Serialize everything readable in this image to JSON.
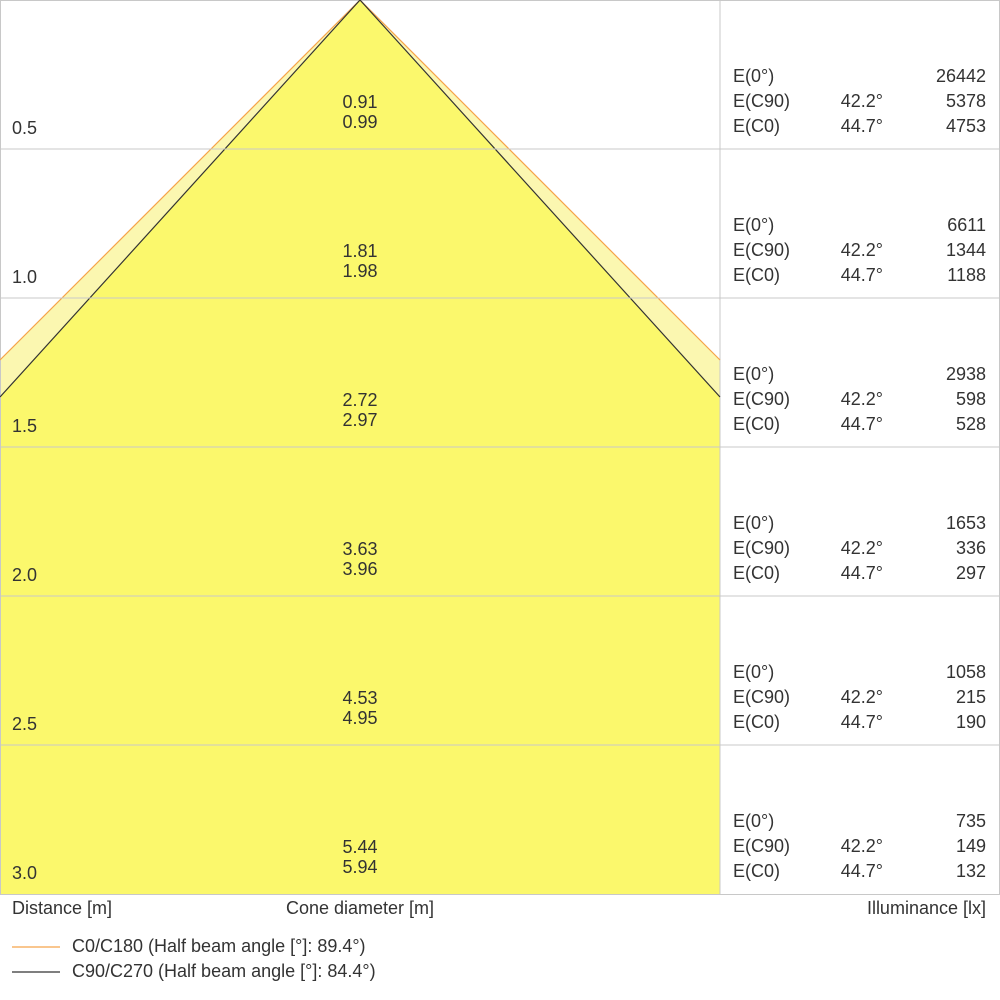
{
  "rows": [
    {
      "distance": "0.5",
      "diameters": [
        "0.91",
        "0.99"
      ],
      "lines": [
        {
          "label": "E(0°)",
          "value": "26442"
        },
        {
          "label": "E(C90)",
          "angle": "42.2°",
          "value": "5378"
        },
        {
          "label": "E(C0)",
          "angle": "44.7°",
          "value": "4753"
        }
      ]
    },
    {
      "distance": "1.0",
      "diameters": [
        "1.81",
        "1.98"
      ],
      "lines": [
        {
          "label": "E(0°)",
          "value": "6611"
        },
        {
          "label": "E(C90)",
          "angle": "42.2°",
          "value": "1344"
        },
        {
          "label": "E(C0)",
          "angle": "44.7°",
          "value": "1188"
        }
      ]
    },
    {
      "distance": "1.5",
      "diameters": [
        "2.72",
        "2.97"
      ],
      "lines": [
        {
          "label": "E(0°)",
          "value": "2938"
        },
        {
          "label": "E(C90)",
          "angle": "42.2°",
          "value": "598"
        },
        {
          "label": "E(C0)",
          "angle": "44.7°",
          "value": "528"
        }
      ]
    },
    {
      "distance": "2.0",
      "diameters": [
        "3.63",
        "3.96"
      ],
      "lines": [
        {
          "label": "E(0°)",
          "value": "1653"
        },
        {
          "label": "E(C90)",
          "angle": "42.2°",
          "value": "336"
        },
        {
          "label": "E(C0)",
          "angle": "44.7°",
          "value": "297"
        }
      ]
    },
    {
      "distance": "2.5",
      "diameters": [
        "4.53",
        "4.95"
      ],
      "lines": [
        {
          "label": "E(0°)",
          "value": "1058"
        },
        {
          "label": "E(C90)",
          "angle": "42.2°",
          "value": "215"
        },
        {
          "label": "E(C0)",
          "angle": "44.7°",
          "value": "190"
        }
      ]
    },
    {
      "distance": "3.0",
      "diameters": [
        "5.44",
        "5.94"
      ],
      "lines": [
        {
          "label": "E(0°)",
          "value": "735"
        },
        {
          "label": "E(C90)",
          "angle": "42.2°",
          "value": "149"
        },
        {
          "label": "E(C0)",
          "angle": "44.7°",
          "value": "132"
        }
      ]
    }
  ],
  "footer": {
    "distance": "Distance [m]",
    "diameter": "Cone diameter [m]",
    "illuminance": "Illuminance [lx]"
  },
  "legend": [
    {
      "label": "C0/C180 (Half beam angle [°]: 89.4°)",
      "color": "#f5a34a"
    },
    {
      "label": "C90/C270 (Half beam angle [°]: 84.4°)",
      "color": "#333333"
    }
  ]
}
